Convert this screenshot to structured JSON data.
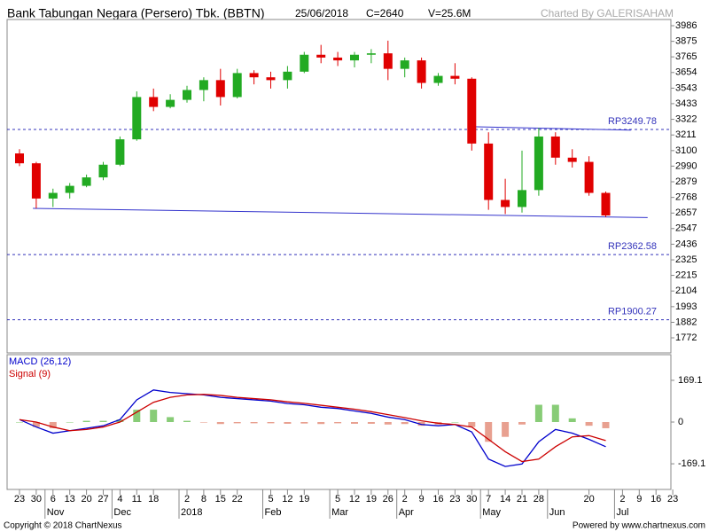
{
  "header": {
    "title": "Bank Tabungan Negara (Persero) Tbk. (BBTN)",
    "date": "25/06/2018",
    "close": "C=2640",
    "volume": "V=25.6M",
    "credit": "Charted By GALERISAHAM"
  },
  "footer": {
    "copyright": "Copyright © 2018 ChartNexus",
    "powered": "Powered by www.chartnexus.com"
  },
  "chart_data": [
    {
      "type": "candlestick",
      "categories": [
        "23",
        "30",
        "6",
        "13",
        "20",
        "27",
        "4",
        "11",
        "18",
        null,
        "2",
        "8",
        "15",
        "22",
        null,
        "5",
        "12",
        "19",
        null,
        "5",
        "12",
        "19",
        "26",
        "2",
        "9",
        "16",
        "23",
        "30",
        "7",
        "14",
        "21",
        "28",
        null,
        null,
        "20",
        null,
        "2",
        "9",
        "16",
        "23"
      ],
      "month_labels": [
        null,
        null,
        "Nov",
        null,
        null,
        null,
        "Dec",
        null,
        null,
        null,
        "2018",
        null,
        null,
        null,
        null,
        "Feb",
        null,
        null,
        null,
        "Mar",
        null,
        null,
        null,
        "Apr",
        null,
        null,
        null,
        null,
        "May",
        null,
        null,
        null,
        "Jun",
        null,
        null,
        null,
        "Jul",
        null,
        null,
        null
      ],
      "open": [
        3080,
        3010,
        2760,
        2800,
        2850,
        2910,
        3000,
        3180,
        3480,
        3410,
        3460,
        3530,
        3600,
        3480,
        3650,
        3620,
        3600,
        3660,
        3780,
        3760,
        3740,
        3780,
        3790,
        3680,
        3740,
        3580,
        3630,
        3610,
        3150,
        2750,
        2700,
        2820,
        3200,
        3050,
        3020,
        2800,
        null,
        null,
        null,
        null
      ],
      "high": [
        3110,
        3020,
        2830,
        2870,
        2930,
        3020,
        3200,
        3520,
        3540,
        3500,
        3560,
        3620,
        3680,
        3680,
        3670,
        3660,
        3700,
        3800,
        3850,
        3800,
        3800,
        3820,
        3880,
        3760,
        3760,
        3650,
        3720,
        3620,
        3230,
        2900,
        3100,
        3260,
        3230,
        3110,
        3060,
        2810,
        null,
        null,
        null,
        null
      ],
      "low": [
        2990,
        2690,
        2700,
        2760,
        2840,
        2890,
        2990,
        3170,
        3380,
        3400,
        3440,
        3450,
        3420,
        3470,
        3570,
        3540,
        3540,
        3650,
        3720,
        3700,
        3690,
        3720,
        3600,
        3620,
        3540,
        3560,
        3570,
        3100,
        2680,
        2650,
        2660,
        2780,
        3000,
        2980,
        2780,
        2630,
        null,
        null,
        null,
        null
      ],
      "close": [
        3010,
        2760,
        2800,
        2850,
        2910,
        3000,
        3180,
        3480,
        3410,
        3460,
        3530,
        3600,
        3480,
        3650,
        3620,
        3600,
        3660,
        3780,
        3760,
        3740,
        3780,
        3790,
        3680,
        3740,
        3580,
        3630,
        3610,
        3150,
        2750,
        2700,
        2820,
        3200,
        3050,
        3020,
        2800,
        2640,
        null,
        null,
        null,
        null
      ],
      "up_color": "#22aa22",
      "down_color": "#e00000",
      "ylim": [
        1665,
        4030
      ],
      "yticks": [
        3986,
        3875,
        3765,
        3654,
        3543,
        3433,
        3322,
        3211,
        3100,
        2990,
        2879,
        2768,
        2657,
        2547,
        2436,
        2325,
        2215,
        2104,
        1993,
        1882,
        1772
      ],
      "reference_lines": [
        {
          "value": 3249.78,
          "label": "RP3249.78"
        },
        {
          "value": 2362.58,
          "label": "RP2362.58"
        },
        {
          "value": 1900.27,
          "label": "RP1900.27"
        }
      ],
      "reference_color": "#3333bb",
      "trendlines": [
        {
          "values": [
            2690,
            2625
          ]
        },
        {
          "values": [
            3270,
            3245
          ]
        }
      ],
      "trendline_color": "#3333cc"
    },
    {
      "type": "macd",
      "series": [
        {
          "name": "MACD (26,12)",
          "color": "#0000cc",
          "values": [
            10,
            -20,
            -45,
            -35,
            -25,
            -15,
            10,
            90,
            130,
            120,
            115,
            110,
            100,
            95,
            90,
            85,
            75,
            70,
            60,
            55,
            45,
            35,
            20,
            10,
            -10,
            -15,
            -10,
            -40,
            -150,
            -180,
            -170,
            -80,
            -30,
            -45,
            -70,
            -100,
            null,
            null,
            null,
            null
          ]
        },
        {
          "name": "Signal (9)",
          "color": "#cc0000",
          "values": [
            10,
            0,
            -20,
            -35,
            -30,
            -20,
            0,
            40,
            80,
            100,
            110,
            112,
            108,
            100,
            95,
            90,
            82,
            76,
            68,
            60,
            52,
            42,
            30,
            18,
            5,
            -5,
            -10,
            -20,
            -70,
            -120,
            -160,
            -150,
            -100,
            -60,
            -55,
            -75,
            null,
            null,
            null,
            null
          ]
        }
      ],
      "histogram": {
        "values": [
          0,
          -20,
          -25,
          0,
          5,
          5,
          10,
          50,
          50,
          20,
          5,
          -2,
          -8,
          -5,
          -5,
          -5,
          -7,
          -6,
          -8,
          -5,
          -7,
          -7,
          -10,
          -8,
          -15,
          -10,
          0,
          -20,
          -80,
          -60,
          -10,
          70,
          70,
          15,
          -15,
          -25,
          null,
          null,
          null,
          null
        ],
        "up_color": "#88cc77",
        "down_color": "#e8a090"
      },
      "ylim": [
        -273,
        273
      ],
      "yticks": [
        169.1,
        0,
        -169.1
      ]
    }
  ]
}
